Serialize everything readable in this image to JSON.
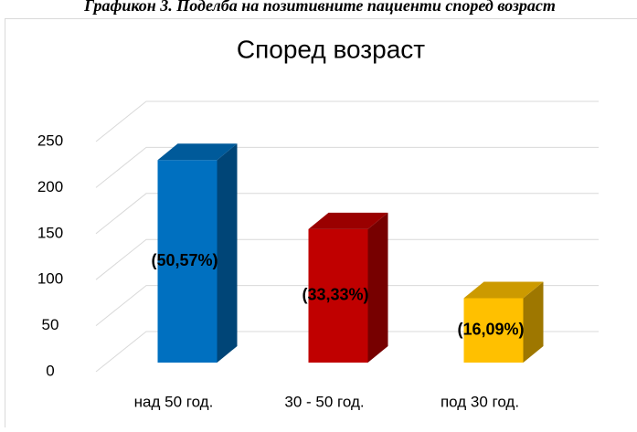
{
  "caption": "Графикон 3. Поделба на позитивните пациенти според возраст",
  "chart_data": {
    "type": "bar3d",
    "title": "Според возраст",
    "categories": [
      "над 50 год.",
      "30 - 50 год.",
      "под 30 год."
    ],
    "values": [
      220,
      145,
      70
    ],
    "data_labels": [
      "(50,57%)",
      "(33,33%)",
      "(16,09%)"
    ],
    "colors": [
      "#0070c0",
      "#c00000",
      "#ffc000"
    ],
    "ylim": [
      0,
      250
    ],
    "yticks": [
      0,
      50,
      100,
      150,
      200,
      250
    ],
    "grid": true
  }
}
